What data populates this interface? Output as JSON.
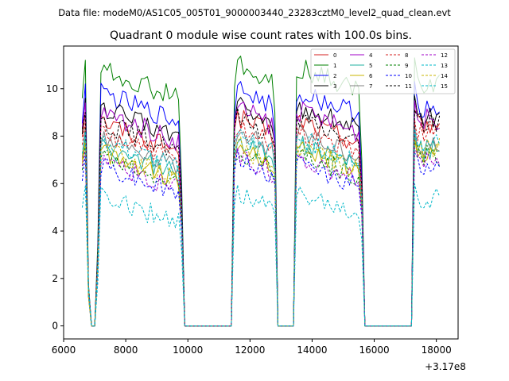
{
  "suptitle": "Data file: modeM0/AS1C05_005T01_9000003440_23283cztM0_level2_quad_clean.evt",
  "chart_data": {
    "type": "line",
    "title": "Quadrant 0 module wise count rates with 100.0s bins.",
    "xlabel": "",
    "ylabel": "",
    "x_offset_label": "+3.17e8",
    "xlim": [
      6000,
      18700
    ],
    "ylim": [
      -0.55,
      11.8
    ],
    "xticks": [
      6000,
      8000,
      10000,
      12000,
      14000,
      16000,
      18000
    ],
    "yticks": [
      0,
      2,
      4,
      6,
      8,
      10
    ],
    "legend_position": "top-right",
    "segments": [
      {
        "x_start": 6600,
        "x_end": 6700,
        "x_drop1": 6800,
        "x_drop2": 6900,
        "x_zero_end": 7100,
        "x_rise": 7200
      },
      {
        "x_start": 7200,
        "x_end": 9800
      },
      {
        "x_start": 11500,
        "x_end": 12800
      },
      {
        "x_start": 13500,
        "x_end": 15600
      },
      {
        "x_start": 17300,
        "x_end": 18100
      }
    ],
    "x": [
      6600,
      6700,
      6800,
      6900,
      7000,
      7100,
      7200,
      7300,
      7400,
      7500,
      7600,
      7700,
      7800,
      7900,
      8000,
      8100,
      8200,
      8300,
      8400,
      8500,
      8600,
      8700,
      8800,
      8900,
      9000,
      9100,
      9200,
      9300,
      9400,
      9500,
      9600,
      9700,
      9800,
      9900,
      10000,
      10100,
      10200,
      10300,
      10400,
      10500,
      10600,
      10700,
      10800,
      10900,
      11000,
      11100,
      11200,
      11300,
      11400,
      11500,
      11600,
      11700,
      11800,
      11900,
      12000,
      12100,
      12200,
      12300,
      12400,
      12500,
      12600,
      12700,
      12800,
      12900,
      13000,
      13100,
      13200,
      13300,
      13400,
      13500,
      13600,
      13700,
      13800,
      13900,
      14000,
      14100,
      14200,
      14300,
      14400,
      14500,
      14600,
      14700,
      14800,
      14900,
      15000,
      15100,
      15200,
      15300,
      15400,
      15500,
      15600,
      15700,
      15800,
      15900,
      16000,
      16100,
      16200,
      16300,
      16400,
      16500,
      16600,
      16700,
      16800,
      16900,
      17000,
      17100,
      17200,
      17300,
      17400,
      17500,
      17600,
      17700,
      17800,
      17900,
      18000,
      18100
    ],
    "series": [
      {
        "name": "0",
        "color": "#d62020",
        "dash": "solid",
        "level": 8.3,
        "first": 9.0
      },
      {
        "name": "1",
        "color": "#008000",
        "dash": "solid",
        "level": 10.0,
        "first": 11.2
      },
      {
        "name": "2",
        "color": "#0000ff",
        "dash": "solid",
        "level": 9.0,
        "first": 10.2
      },
      {
        "name": "3",
        "color": "#000000",
        "dash": "solid",
        "level": 8.6,
        "first": 9.6
      },
      {
        "name": "4",
        "color": "#a000c8",
        "dash": "solid",
        "level": 8.5,
        "first": 9.4
      },
      {
        "name": "5",
        "color": "#20b0a0",
        "dash": "solid",
        "level": 7.2,
        "first": 8.0
      },
      {
        "name": "6",
        "color": "#c8b400",
        "dash": "solid",
        "level": 7.1,
        "first": 7.8
      },
      {
        "name": "7",
        "color": "#808080",
        "dash": "solid",
        "level": 7.4,
        "first": 8.4
      },
      {
        "name": "8",
        "color": "#d62020",
        "dash": "dashed",
        "level": 8.0,
        "first": 8.6
      },
      {
        "name": "9",
        "color": "#008000",
        "dash": "dashed",
        "level": 7.0,
        "first": 7.6
      },
      {
        "name": "10",
        "color": "#0000ff",
        "dash": "dashed",
        "level": 6.6,
        "first": 7.2
      },
      {
        "name": "11",
        "color": "#000000",
        "dash": "dashed",
        "level": 8.4,
        "first": 9.0
      },
      {
        "name": "12",
        "color": "#a000c8",
        "dash": "dashed",
        "level": 6.9,
        "first": 7.4
      },
      {
        "name": "13",
        "color": "#00b8c8",
        "dash": "dashed",
        "level": 5.2,
        "first": 5.9
      },
      {
        "name": "14",
        "color": "#c8b400",
        "dash": "dashed",
        "level": 7.3,
        "first": 7.8
      },
      {
        "name": "15",
        "color": "#00b8c8",
        "dash": "dashed",
        "level": 7.6,
        "first": 8.2
      }
    ]
  }
}
